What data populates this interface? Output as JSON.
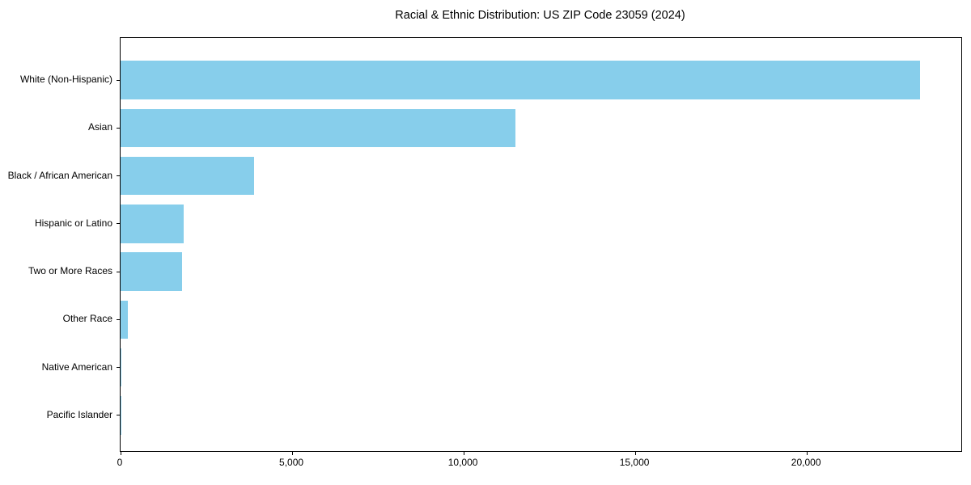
{
  "chart_data": {
    "type": "bar",
    "orientation": "horizontal",
    "title": "Racial & Ethnic Distribution: US ZIP Code 23059 (2024)",
    "categories": [
      "White (Non-Hispanic)",
      "Asian",
      "Black / African American",
      "Hispanic or Latino",
      "Two or More Races",
      "Other Race",
      "Native American",
      "Pacific Islander"
    ],
    "values": [
      23300,
      11500,
      3900,
      1850,
      1790,
      220,
      35,
      8
    ],
    "xlabel": "",
    "ylabel": "",
    "xlim": [
      0,
      24500
    ],
    "xticks": [
      0,
      5000,
      10000,
      15000,
      20000
    ],
    "xtick_labels": [
      "0",
      "5,000",
      "10,000",
      "15,000",
      "20,000"
    ],
    "bar_color": "#87CEEB",
    "background_color": "#FFFFFF",
    "text_color": "#000000",
    "grid": false,
    "legend": "none"
  }
}
